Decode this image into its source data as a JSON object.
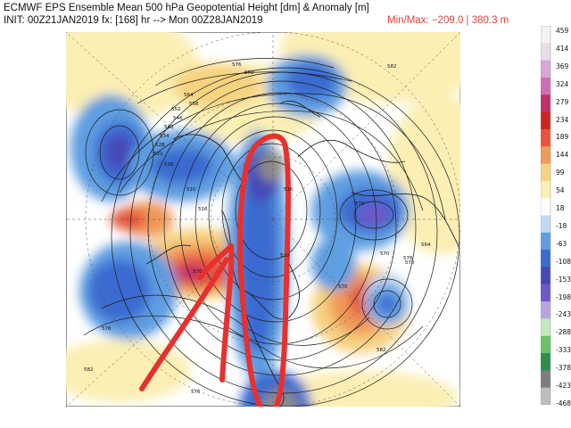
{
  "header": {
    "title": "ECMWF EPS Ensemble Mean 500 hPa Geopotential Height [dm] & Anomaly [m]",
    "init": "INIT: 00Z21JAN2019  fx: [168] hr --> Mon 00Z28JAN2019",
    "minmax": "Min/Max: −209.0 | 380.3 m"
  },
  "colorbar": {
    "labels": [
      "459",
      "414",
      "369",
      "324",
      "279",
      "234",
      "189",
      "144",
      "99",
      "54",
      "18",
      "-18",
      "-63",
      "-108",
      "-153",
      "-198",
      "-243",
      "-288",
      "-333",
      "-378",
      "-423",
      "-468"
    ],
    "colors": [
      "#f3f3f3",
      "#e9dde9",
      "#d9a7d3",
      "#cd6fb5",
      "#c0306a",
      "#cf2424",
      "#e5553a",
      "#f09958",
      "#f6d380",
      "#fbf0b4",
      "#ffffff",
      "#bfd9f2",
      "#5f9ee1",
      "#3a6bd0",
      "#4747b8",
      "#6f58c8",
      "#b9a6e0",
      "#c4e8c0",
      "#6cc06a",
      "#2e8e4c",
      "#7d7d7d",
      "#bdbdbd"
    ]
  },
  "map": {
    "contour_labels": [
      "576",
      "570",
      "564",
      "558",
      "552",
      "546",
      "540",
      "534",
      "528",
      "522",
      "516",
      "510",
      "516",
      "570",
      "570",
      "570",
      "576",
      "582",
      "582",
      "576",
      "582",
      "570",
      "576",
      "564",
      "510",
      "516",
      "570"
    ],
    "features": [
      "north-polar-stereographic-projection",
      "anomaly-shading",
      "height-contours",
      "coastlines",
      "lat-lon-grid"
    ],
    "annotations": [
      "red-arrow-hand-drawn",
      "red-oval-hand-drawn"
    ]
  }
}
